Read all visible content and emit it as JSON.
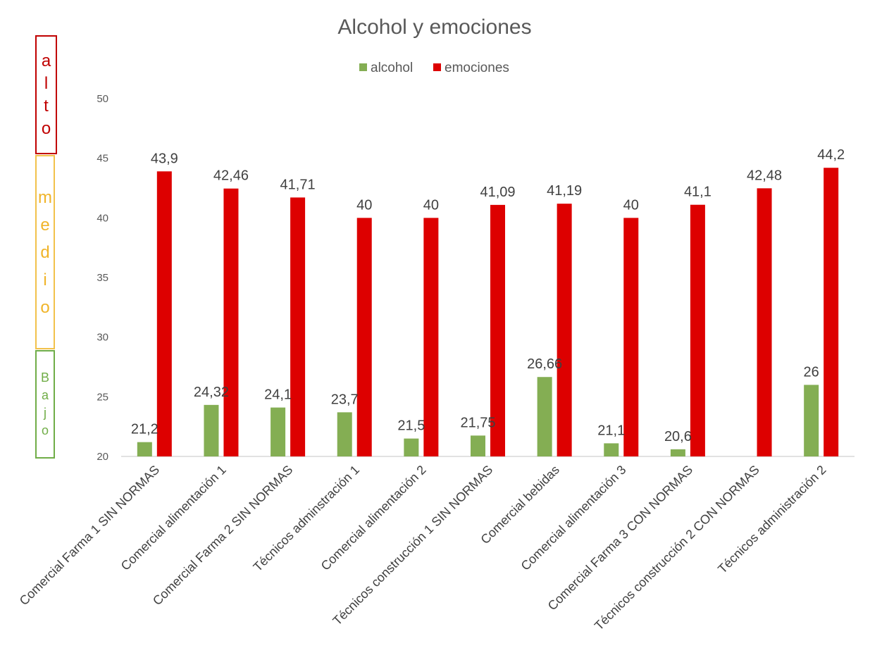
{
  "chart_data": {
    "type": "bar",
    "title": "Alcohol y emociones",
    "xlabel": "",
    "ylabel": "",
    "ylim": [
      20,
      50
    ],
    "yticks": [
      20,
      25,
      30,
      35,
      40,
      45,
      50
    ],
    "grid": false,
    "legend_position": "top",
    "categories": [
      "Comercial Farma 1 SIN NORMAS",
      "Comercial alimentación 1",
      "Comercial Farma 2 SIN NORMAS",
      "Técnicos adminstración 1",
      "Comercial alimentación 2",
      "Técnicos construcción 1 SIN NORMAS",
      "Comercial bebidas",
      "Comercial alimentación 3",
      "Comercial Farma 3 CON NORMAS",
      "Técnicos construcción 2 CON NORMAS",
      "Técnicos administración 2"
    ],
    "series": [
      {
        "name": "alcohol",
        "color": "#84ae53",
        "values": [
          21.2,
          24.32,
          24.1,
          23.7,
          21.5,
          21.75,
          26.66,
          21.1,
          20.6,
          null,
          26
        ],
        "labels": [
          "21,2",
          "24,32",
          "24,1",
          "23,7",
          "21,5",
          "21,75",
          "26,66",
          "21,1",
          "20,6",
          "",
          "26"
        ]
      },
      {
        "name": "emociones",
        "color": "#dd0000",
        "values": [
          43.9,
          42.46,
          41.71,
          40,
          40,
          41.09,
          41.19,
          40,
          41.1,
          42.48,
          44.2
        ],
        "labels": [
          "43,9",
          "42,46",
          "41,71",
          "40",
          "40",
          "41,09",
          "41,19",
          "40",
          "41,1",
          "42,48",
          "44,2"
        ]
      }
    ]
  },
  "side_scale": {
    "alto": [
      "a",
      "l",
      "t",
      "o"
    ],
    "medio": [
      "m",
      "e",
      "d",
      "i",
      "o"
    ],
    "bajo": [
      "B",
      "a",
      "j",
      "o"
    ],
    "colors": {
      "alto": "#c00000",
      "medio": "#f0b429",
      "bajo": "#70ad47"
    }
  }
}
